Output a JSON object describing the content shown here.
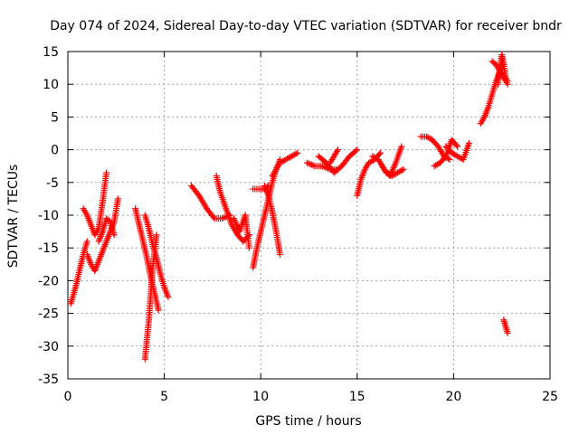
{
  "chart_data": {
    "type": "scatter",
    "title": "Day 074 of 2024, Sidereal Day-to-day VTEC variation (SDTVAR) for receiver bndr",
    "xlabel": "GPS time / hours",
    "ylabel": "SDTVAR / TECUs",
    "xlim": [
      0,
      25
    ],
    "ylim": [
      -35,
      15
    ],
    "xticks": [
      0,
      5,
      10,
      15,
      20,
      25
    ],
    "yticks": [
      15,
      10,
      5,
      0,
      -5,
      -10,
      -15,
      -20,
      -25,
      -30,
      -35
    ],
    "grid": true,
    "marker": "plus",
    "color": "#ff0000",
    "segments": [
      {
        "x": [
          0.15,
          0.4,
          0.6,
          0.8,
          1.0
        ],
        "y": [
          -23.5,
          -21,
          -18.5,
          -16,
          -14
        ]
      },
      {
        "x": [
          0.8,
          1.0,
          1.2,
          1.4,
          1.6,
          1.8,
          2.0
        ],
        "y": [
          -9,
          -10,
          -11.5,
          -13,
          -12,
          -8,
          -3.5
        ]
      },
      {
        "x": [
          1.0,
          1.2,
          1.4,
          1.6,
          1.8,
          2.0,
          2.2,
          2.4,
          2.6
        ],
        "y": [
          -16,
          -17.5,
          -18.5,
          -17,
          -15.5,
          -14,
          -12.5,
          -11,
          -7.5
        ]
      },
      {
        "x": [
          1.6,
          1.8,
          2.0,
          2.2,
          2.4
        ],
        "y": [
          -14,
          -12.5,
          -10.5,
          -11,
          -13
        ]
      },
      {
        "x": [
          3.5,
          3.7,
          3.9,
          4.1,
          4.3,
          4.5,
          4.7
        ],
        "y": [
          -9,
          -11.5,
          -14,
          -16.5,
          -19.5,
          -22,
          -24.5
        ]
      },
      {
        "x": [
          4.0,
          4.1,
          4.2,
          4.3,
          4.4,
          4.6
        ],
        "y": [
          -32,
          -29,
          -26,
          -22,
          -18,
          -13
        ]
      },
      {
        "x": [
          4.0,
          4.2,
          4.4,
          4.6,
          4.8,
          5.0,
          5.2
        ],
        "y": [
          -10,
          -12,
          -14.5,
          -16.5,
          -19,
          -21,
          -22.5
        ]
      },
      {
        "x": [
          6.4,
          6.8,
          7.2,
          7.6,
          8.0,
          8.4
        ],
        "y": [
          -5.5,
          -7,
          -9,
          -10.5,
          -10.5,
          -10
        ]
      },
      {
        "x": [
          7.7,
          7.9,
          8.2,
          8.5,
          8.8,
          9.1,
          9.4
        ],
        "y": [
          -4,
          -6.5,
          -9,
          -11.5,
          -13,
          -14,
          -13
        ]
      },
      {
        "x": [
          8.6,
          8.9,
          9.2
        ],
        "y": [
          -10.5,
          -12.5,
          -10
        ]
      },
      {
        "x": [
          9.2,
          9.4
        ],
        "y": [
          -10,
          -15
        ]
      },
      {
        "x": [
          9.6,
          9.8,
          10.0,
          10.2,
          10.4,
          10.6,
          10.8,
          11.0
        ],
        "y": [
          -18,
          -15,
          -12.5,
          -10,
          -7.5,
          -5,
          -3,
          -1.5
        ]
      },
      {
        "x": [
          9.6,
          9.8,
          10.0,
          10.2,
          10.4
        ],
        "y": [
          -6,
          -6,
          -6,
          -6,
          -5.5
        ]
      },
      {
        "x": [
          10.2,
          10.4,
          10.6,
          10.8,
          11.0
        ],
        "y": [
          -5.5,
          -7,
          -9.5,
          -12.5,
          -16
        ]
      },
      {
        "x": [
          10.6,
          10.8,
          11.0,
          11.3,
          11.6,
          11.9
        ],
        "y": [
          -4,
          -3,
          -2,
          -1.5,
          -1,
          -0.5
        ]
      },
      {
        "x": [
          12.4,
          12.8,
          13.2,
          13.6,
          14.0
        ],
        "y": [
          -2,
          -2.5,
          -2.5,
          -3,
          -3
        ]
      },
      {
        "x": [
          13.0,
          13.4,
          13.8,
          14.2,
          14.6,
          15.0
        ],
        "y": [
          -1,
          -2,
          -3.5,
          -2.5,
          -1,
          0
        ]
      },
      {
        "x": [
          13.6,
          13.8,
          14.0
        ],
        "y": [
          -2,
          -1,
          0
        ]
      },
      {
        "x": [
          15.0,
          15.2,
          15.4,
          15.6,
          15.9,
          16.2
        ],
        "y": [
          -7,
          -4.5,
          -3,
          -2,
          -1.5,
          -0.5
        ]
      },
      {
        "x": [
          15.8,
          16.1,
          16.4,
          16.7,
          17.0,
          17.3
        ],
        "y": [
          -1,
          -1.5,
          -3,
          -4,
          -2,
          0.5
        ]
      },
      {
        "x": [
          16.2,
          16.5,
          16.8,
          17.1,
          17.4
        ],
        "y": [
          -2,
          -3.5,
          -4,
          -3.5,
          -3
        ]
      },
      {
        "x": [
          18.3,
          18.6,
          18.9,
          19.2,
          19.5,
          19.8
        ],
        "y": [
          2,
          2,
          1.5,
          0.5,
          -1,
          -1.5
        ]
      },
      {
        "x": [
          19.0,
          19.3,
          19.6,
          19.9,
          20.2
        ],
        "y": [
          -2.5,
          -2,
          -1,
          1.5,
          0.5
        ]
      },
      {
        "x": [
          19.6,
          19.9,
          20.2,
          20.5,
          20.8
        ],
        "y": [
          0.5,
          -0.5,
          -1,
          -1.5,
          1
        ]
      },
      {
        "x": [
          21.4,
          21.6,
          21.8,
          22.0,
          22.2,
          22.4,
          22.6
        ],
        "y": [
          4,
          5,
          6.5,
          8.5,
          10.5,
          12,
          13
        ]
      },
      {
        "x": [
          22.0,
          22.2,
          22.4,
          22.6,
          22.8
        ],
        "y": [
          13.5,
          13,
          12,
          11,
          10
        ]
      },
      {
        "x": [
          22.3,
          22.4,
          22.5,
          22.6,
          22.7,
          22.8
        ],
        "y": [
          10,
          12.5,
          14.5,
          13,
          11,
          10.5
        ]
      },
      {
        "x": [
          22.6,
          22.7,
          22.8
        ],
        "y": [
          -26,
          -27,
          -28
        ]
      }
    ]
  }
}
